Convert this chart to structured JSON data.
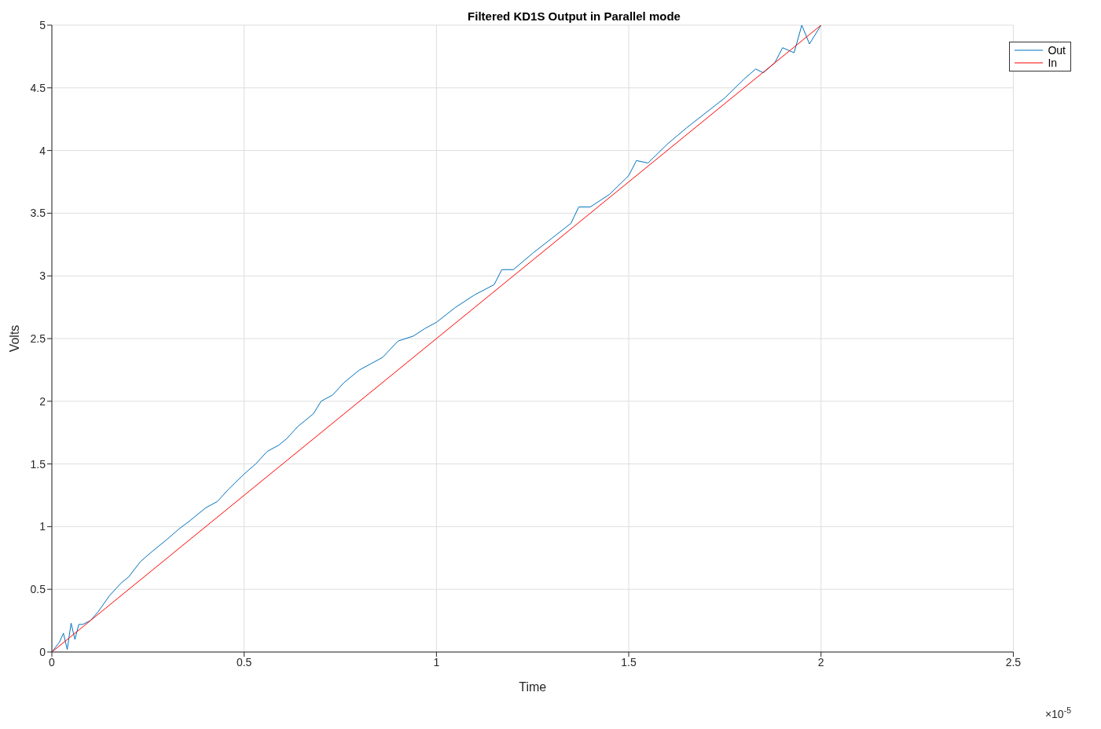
{
  "chart_data": {
    "type": "line",
    "title": "Filtered KD1S Output in Parallel mode",
    "xlabel": "Time",
    "ylabel": "Volts",
    "annotations": [
      "×10$^{-5}$"
    ],
    "xlim": [
      0,
      2.5
    ],
    "xticks": [
      0,
      0.5,
      1,
      1.5,
      2,
      2.5
    ],
    "ylim": [
      0,
      5
    ],
    "yticks": [
      0,
      0.5,
      1,
      1.5,
      2,
      2.5,
      3,
      3.5,
      4,
      4.5,
      5
    ],
    "grid": true,
    "legend": "top right",
    "marker": "none",
    "line_style": "solid",
    "series": [
      {
        "name": "Out",
        "color": "#0072bd",
        "x": [
          0,
          0.02,
          0.03,
          0.04,
          0.05,
          0.06,
          0.07,
          0.08,
          0.1,
          0.12,
          0.15,
          0.18,
          0.2,
          0.23,
          0.26,
          0.3,
          0.33,
          0.36,
          0.4,
          0.43,
          0.46,
          0.5,
          0.53,
          0.56,
          0.59,
          0.61,
          0.64,
          0.68,
          0.7,
          0.73,
          0.76,
          0.8,
          0.83,
          0.86,
          0.9,
          0.94,
          0.97,
          1,
          1.05,
          1.1,
          1.15,
          1.17,
          1.2,
          1.25,
          1.3,
          1.35,
          1.37,
          1.4,
          1.45,
          1.5,
          1.52,
          1.55,
          1.6,
          1.65,
          1.7,
          1.75,
          1.8,
          1.83,
          1.85,
          1.88,
          1.9,
          1.93,
          1.95,
          1.97,
          2
        ],
        "values": [
          0,
          0.08,
          0.15,
          0.02,
          0.23,
          0.1,
          0.22,
          0.22,
          0.25,
          0.32,
          0.45,
          0.55,
          0.6,
          0.72,
          0.8,
          0.9,
          0.98,
          1.05,
          1.15,
          1.2,
          1.3,
          1.42,
          1.5,
          1.6,
          1.65,
          1.7,
          1.8,
          1.9,
          2.0,
          2.05,
          2.15,
          2.25,
          2.3,
          2.35,
          2.48,
          2.52,
          2.58,
          2.63,
          2.75,
          2.85,
          2.93,
          3.05,
          3.05,
          3.18,
          3.3,
          3.42,
          3.55,
          3.55,
          3.65,
          3.8,
          3.92,
          3.9,
          4.05,
          4.18,
          4.3,
          4.42,
          4.57,
          4.65,
          4.62,
          4.7,
          4.82,
          4.78,
          5.0,
          4.85,
          5.0
        ]
      },
      {
        "name": "In",
        "color": "#ff0000",
        "x": [
          0,
          2
        ],
        "values": [
          0,
          5
        ]
      }
    ]
  }
}
